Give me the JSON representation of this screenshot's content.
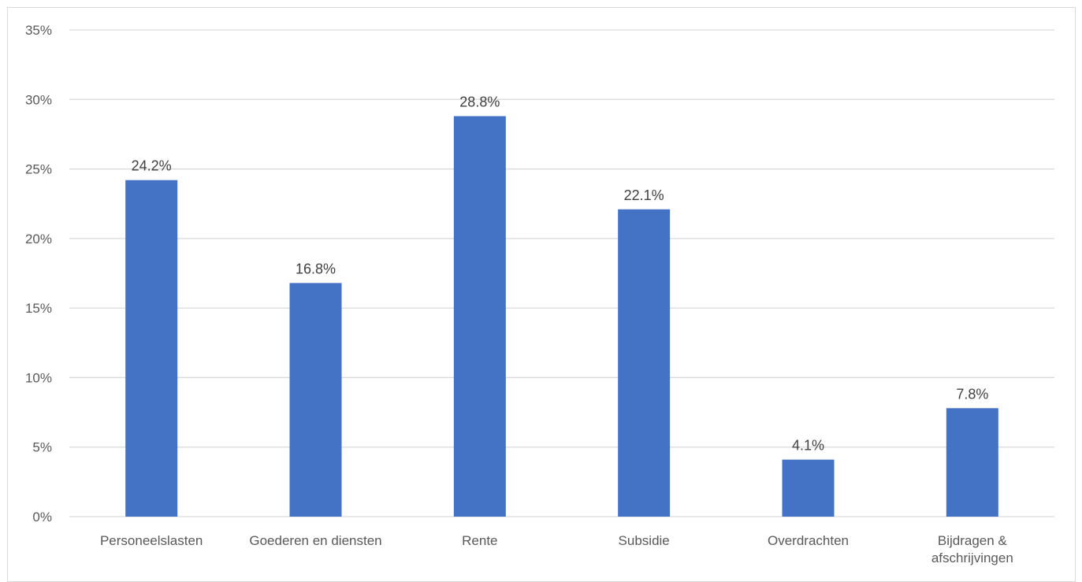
{
  "chart_data": {
    "type": "bar",
    "categories": [
      [
        "Personeelslasten"
      ],
      [
        "Goederen en diensten"
      ],
      [
        "Rente"
      ],
      [
        "Subsidie"
      ],
      [
        "Overdrachten"
      ],
      [
        "Bijdragen &",
        "afschrijvingen"
      ]
    ],
    "values": [
      24.2,
      16.8,
      28.8,
      22.1,
      4.1,
      7.8
    ],
    "data_labels": [
      "24.2%",
      "16.8%",
      "28.8%",
      "22.1%",
      "4.1%",
      "7.8%"
    ],
    "yticks": [
      0,
      5,
      10,
      15,
      20,
      25,
      30,
      35
    ],
    "ytick_labels": [
      "0%",
      "5%",
      "10%",
      "15%",
      "20%",
      "25%",
      "30%",
      "35%"
    ],
    "ylim": [
      0,
      35
    ],
    "grid": true,
    "legend": "none",
    "title": "",
    "xlabel": "",
    "ylabel": "",
    "colors": {
      "bar": "#4472C4",
      "grid": "#d9d9d9",
      "text": "#595959"
    }
  }
}
